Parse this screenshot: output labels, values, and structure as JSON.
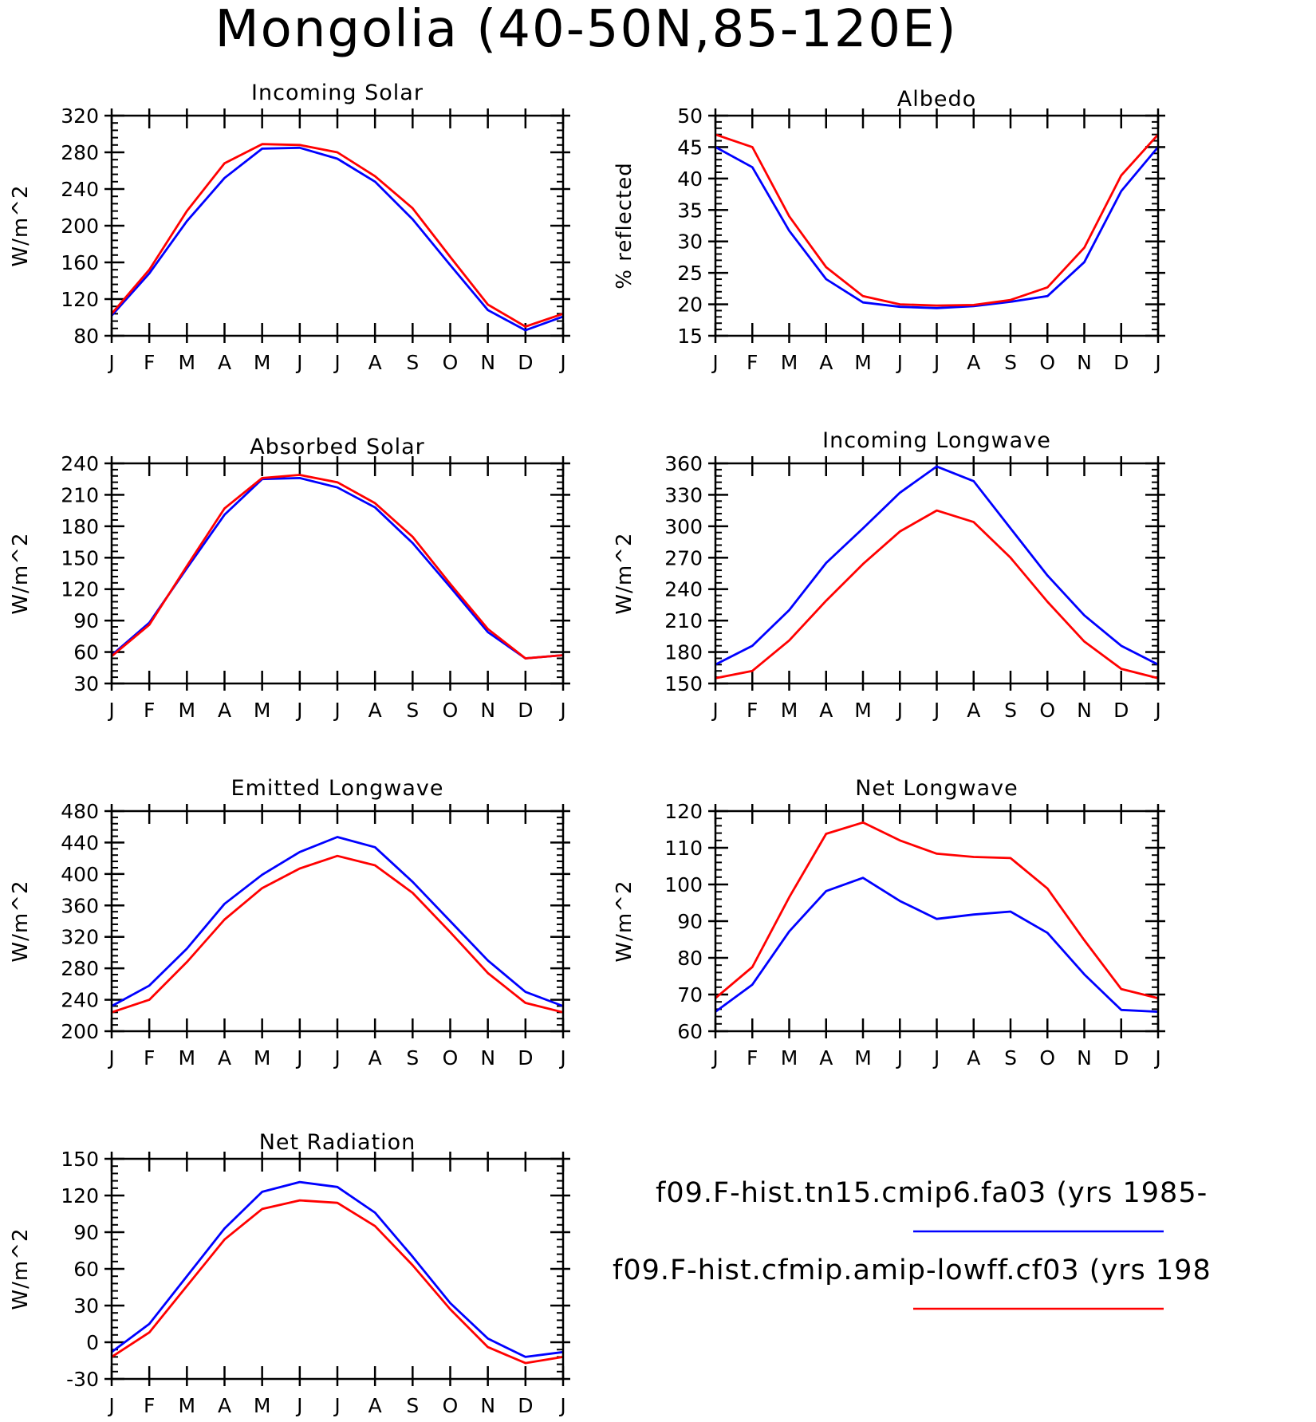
{
  "page_title": "Mongolia (40-50N,85-120E)",
  "colors": {
    "series_1": "#0000ff",
    "series_2": "#ff0000"
  },
  "legend": [
    {
      "label": "f09.F-hist.tn15.cmip6.fa03 (yrs 1985-",
      "color": "#0000ff"
    },
    {
      "label": "f09.F-hist.cfmip.amip-lowff.cf03 (yrs 198",
      "color": "#ff0000"
    }
  ],
  "chart_data": [
    {
      "type": "line",
      "title": "Incoming Solar",
      "ylabel": "W/m^2",
      "categories": [
        "J",
        "F",
        "M",
        "A",
        "M",
        "J",
        "J",
        "A",
        "S",
        "O",
        "N",
        "D",
        "J"
      ],
      "ylim": [
        80,
        320
      ],
      "yticks": [
        80,
        120,
        160,
        200,
        240,
        280,
        320
      ],
      "series": [
        {
          "color": "#0000ff",
          "values": [
            102,
            148,
            205,
            252,
            284,
            285,
            273,
            248,
            207,
            157,
            108,
            86,
            101
          ]
        },
        {
          "color": "#ff0000",
          "values": [
            104,
            152,
            216,
            268,
            289,
            288,
            280,
            254,
            219,
            166,
            114,
            90,
            104
          ]
        }
      ]
    },
    {
      "type": "line",
      "title": "Albedo",
      "ylabel": "% reflected",
      "categories": [
        "J",
        "F",
        "M",
        "A",
        "M",
        "J",
        "J",
        "A",
        "S",
        "O",
        "N",
        "D",
        "J"
      ],
      "ylim": [
        15,
        50
      ],
      "yticks": [
        15,
        20,
        25,
        30,
        35,
        40,
        45,
        50
      ],
      "series": [
        {
          "color": "#0000ff",
          "values": [
            45.0,
            41.8,
            31.7,
            24.0,
            20.3,
            19.6,
            19.4,
            19.7,
            20.4,
            21.3,
            26.7,
            38.0,
            45.0
          ]
        },
        {
          "color": "#ff0000",
          "values": [
            47.0,
            45.0,
            34.0,
            25.9,
            21.3,
            20.0,
            19.8,
            19.9,
            20.7,
            22.7,
            29.0,
            40.5,
            47.0
          ]
        }
      ]
    },
    {
      "type": "line",
      "title": "Absorbed Solar",
      "ylabel": "W/m^2",
      "categories": [
        "J",
        "F",
        "M",
        "A",
        "M",
        "J",
        "J",
        "A",
        "S",
        "O",
        "N",
        "D",
        "J"
      ],
      "ylim": [
        30,
        240
      ],
      "yticks": [
        30,
        60,
        90,
        120,
        150,
        180,
        210,
        240
      ],
      "series": [
        {
          "color": "#0000ff",
          "values": [
            57,
            88,
            140,
            191,
            225,
            226,
            217,
            198,
            164,
            122,
            79,
            54,
            57
          ]
        },
        {
          "color": "#ff0000",
          "values": [
            56,
            86,
            142,
            197,
            226,
            229,
            222,
            202,
            170,
            125,
            82,
            54,
            57
          ]
        }
      ]
    },
    {
      "type": "line",
      "title": "Incoming Longwave",
      "ylabel": "W/m^2",
      "categories": [
        "J",
        "F",
        "M",
        "A",
        "M",
        "J",
        "J",
        "A",
        "S",
        "O",
        "N",
        "D",
        "J"
      ],
      "ylim": [
        150,
        360
      ],
      "yticks": [
        150,
        180,
        210,
        240,
        270,
        300,
        330,
        360
      ],
      "series": [
        {
          "color": "#0000ff",
          "values": [
            168,
            186,
            220,
            265,
            298,
            332,
            357,
            343,
            298,
            253,
            215,
            186,
            168
          ]
        },
        {
          "color": "#ff0000",
          "values": [
            155,
            162,
            191,
            229,
            264,
            295,
            315,
            304,
            270,
            228,
            190,
            164,
            155
          ]
        }
      ]
    },
    {
      "type": "line",
      "title": "Emitted Longwave",
      "ylabel": "W/m^2",
      "categories": [
        "J",
        "F",
        "M",
        "A",
        "M",
        "J",
        "J",
        "A",
        "S",
        "O",
        "N",
        "D",
        "J"
      ],
      "ylim": [
        200,
        480
      ],
      "yticks": [
        200,
        240,
        280,
        320,
        360,
        400,
        440,
        480
      ],
      "series": [
        {
          "color": "#0000ff",
          "values": [
            232,
            258,
            305,
            362,
            399,
            428,
            447,
            434,
            390,
            340,
            290,
            250,
            232
          ]
        },
        {
          "color": "#ff0000",
          "values": [
            224,
            240,
            288,
            342,
            382,
            407,
            423,
            411,
            376,
            326,
            274,
            236,
            224
          ]
        }
      ]
    },
    {
      "type": "line",
      "title": "Net Longwave",
      "ylabel": "W/m^2",
      "categories": [
        "J",
        "F",
        "M",
        "A",
        "M",
        "J",
        "J",
        "A",
        "S",
        "O",
        "N",
        "D",
        "J"
      ],
      "ylim": [
        60,
        120
      ],
      "yticks": [
        60,
        70,
        80,
        90,
        100,
        110,
        120
      ],
      "series": [
        {
          "color": "#0000ff",
          "values": [
            65.3,
            72.7,
            87.2,
            98.2,
            101.8,
            95.5,
            90.6,
            91.8,
            92.6,
            86.8,
            75.5,
            65.8,
            65.3
          ]
        },
        {
          "color": "#ff0000",
          "values": [
            69.0,
            77.5,
            96.5,
            113.8,
            116.9,
            112.0,
            108.4,
            107.5,
            107.2,
            98.9,
            84.8,
            71.5,
            69.0
          ]
        }
      ]
    },
    {
      "type": "line",
      "title": "Net Radiation",
      "ylabel": "W/m^2",
      "categories": [
        "J",
        "F",
        "M",
        "A",
        "M",
        "J",
        "J",
        "A",
        "S",
        "O",
        "N",
        "D",
        "J"
      ],
      "ylim": [
        -30,
        150
      ],
      "yticks": [
        -30,
        0,
        30,
        60,
        90,
        120,
        150
      ],
      "series": [
        {
          "color": "#0000ff",
          "values": [
            -8,
            15,
            54,
            93,
            123,
            131,
            127,
            106,
            70,
            32,
            3,
            -12,
            -8
          ]
        },
        {
          "color": "#ff0000",
          "values": [
            -12,
            8,
            46,
            84,
            109,
            116,
            114,
            95,
            63,
            27,
            -4,
            -17,
            -12
          ]
        }
      ]
    }
  ]
}
